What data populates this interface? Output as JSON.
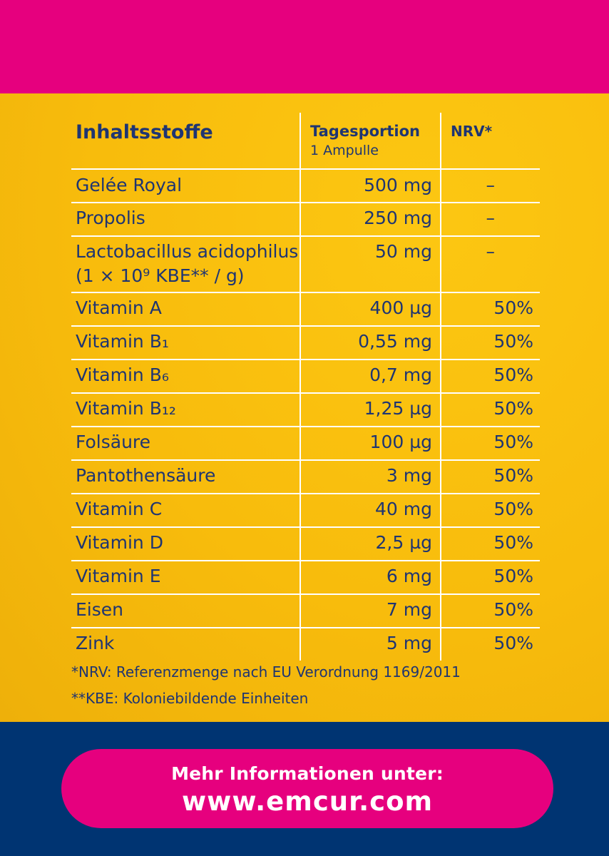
{
  "colors": {
    "top_band": "#e6007e",
    "panel_yellow": "#f8bc0c",
    "bottom_band": "#003472",
    "cta_pink": "#e6007e",
    "text_blue": "#1f3572",
    "rule_white": "#ffffff"
  },
  "table": {
    "header": {
      "name": "Inhaltsstoffe",
      "portion": "Tagesportion",
      "portion_sub": "1 Ampulle",
      "nrv": "NRV*"
    },
    "rows": [
      {
        "name": "Gelée Royal",
        "amount": "500 mg",
        "nrv": "–"
      },
      {
        "name": "Propolis",
        "amount": "250 mg",
        "nrv": "–"
      },
      {
        "name": "Lactobacillus acidophilus",
        "name2": "(1 × 10⁹ KBE** / g)",
        "amount": "50 mg",
        "nrv": "–"
      },
      {
        "name": "Vitamin A",
        "amount": "400 µg",
        "nrv": "50%"
      },
      {
        "name": "Vitamin B₁",
        "amount": "0,55 mg",
        "nrv": "50%"
      },
      {
        "name": "Vitamin B₆",
        "amount": "0,7 mg",
        "nrv": "50%"
      },
      {
        "name": "Vitamin B₁₂",
        "amount": "1,25 µg",
        "nrv": "50%"
      },
      {
        "name": "Folsäure",
        "amount": "100 µg",
        "nrv": "50%"
      },
      {
        "name": "Pantothensäure",
        "amount": "3 mg",
        "nrv": "50%"
      },
      {
        "name": "Vitamin C",
        "amount": "40 mg",
        "nrv": "50%"
      },
      {
        "name": "Vitamin D",
        "amount": "2,5 µg",
        "nrv": "50%"
      },
      {
        "name": "Vitamin E",
        "amount": "6 mg",
        "nrv": "50%"
      },
      {
        "name": "Eisen",
        "amount": "7 mg",
        "nrv": "50%"
      },
      {
        "name": "Zink",
        "amount": "5 mg",
        "nrv": "50%"
      }
    ]
  },
  "footnotes": {
    "nrv": "*NRV: Referenzmenge nach EU Verordnung 1169/2011",
    "kbe": "**KBE: Koloniebildende Einheiten"
  },
  "cta": {
    "line1": "Mehr Informationen unter:",
    "url": "www.emcur.com"
  }
}
